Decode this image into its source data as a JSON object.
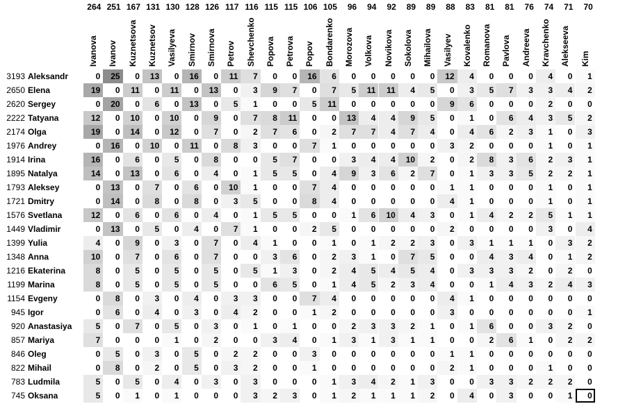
{
  "chart_data": {
    "type": "heatmap",
    "title": "",
    "columns": [
      {
        "name": "Ivanova",
        "count": 264
      },
      {
        "name": "Ivanov",
        "count": 251
      },
      {
        "name": "Kuznetsova",
        "count": 167
      },
      {
        "name": "Kuznetsov",
        "count": 131
      },
      {
        "name": "Vasilyeva",
        "count": 130
      },
      {
        "name": "Smirnov",
        "count": 128
      },
      {
        "name": "Smirnova",
        "count": 126
      },
      {
        "name": "Petrov",
        "count": 117
      },
      {
        "name": "Shevchenko",
        "count": 116
      },
      {
        "name": "Popova",
        "count": 115
      },
      {
        "name": "Petrova",
        "count": 115
      },
      {
        "name": "Popov",
        "count": 106
      },
      {
        "name": "Bondarenko",
        "count": 105
      },
      {
        "name": "Morozova",
        "count": 96
      },
      {
        "name": "Volkova",
        "count": 94
      },
      {
        "name": "Novikova",
        "count": 92
      },
      {
        "name": "Sokolova",
        "count": 89
      },
      {
        "name": "Mihailova",
        "count": 89
      },
      {
        "name": "Vasilyev",
        "count": 88
      },
      {
        "name": "Kovalenko",
        "count": 83
      },
      {
        "name": "Romanova",
        "count": 81
      },
      {
        "name": "Pavlova",
        "count": 81
      },
      {
        "name": "Andreeva",
        "count": 76
      },
      {
        "name": "Kravchenko",
        "count": 74
      },
      {
        "name": "Alekseeva",
        "count": 71
      },
      {
        "name": "Kim",
        "count": 70
      }
    ],
    "rows": [
      {
        "name": "Aleksandr",
        "count": 3193,
        "values": [
          0,
          25,
          0,
          13,
          0,
          16,
          0,
          11,
          7,
          0,
          0,
          16,
          6,
          0,
          0,
          0,
          0,
          0,
          12,
          4,
          0,
          0,
          0,
          4,
          0,
          1
        ]
      },
      {
        "name": "Elena",
        "count": 2650,
        "values": [
          19,
          0,
          11,
          0,
          11,
          0,
          13,
          0,
          3,
          9,
          7,
          0,
          7,
          5,
          11,
          11,
          4,
          5,
          0,
          3,
          5,
          7,
          3,
          3,
          4,
          2
        ]
      },
      {
        "name": "Sergey",
        "count": 2620,
        "values": [
          0,
          20,
          0,
          6,
          0,
          13,
          0,
          5,
          1,
          0,
          0,
          5,
          11,
          0,
          0,
          0,
          0,
          0,
          9,
          6,
          0,
          0,
          0,
          2,
          0,
          0
        ]
      },
      {
        "name": "Tatyana",
        "count": 2222,
        "values": [
          12,
          0,
          10,
          0,
          10,
          0,
          9,
          0,
          7,
          8,
          11,
          0,
          0,
          13,
          4,
          4,
          9,
          5,
          0,
          1,
          0,
          6,
          4,
          3,
          5,
          2
        ]
      },
      {
        "name": "Olga",
        "count": 2174,
        "values": [
          19,
          0,
          14,
          0,
          12,
          0,
          7,
          0,
          2,
          7,
          6,
          0,
          2,
          7,
          7,
          4,
          7,
          4,
          0,
          4,
          6,
          2,
          3,
          1,
          0,
          3
        ]
      },
      {
        "name": "Andrey",
        "count": 1976,
        "values": [
          0,
          16,
          0,
          10,
          0,
          11,
          0,
          8,
          3,
          0,
          0,
          7,
          1,
          0,
          0,
          0,
          0,
          0,
          3,
          2,
          0,
          0,
          0,
          1,
          0,
          1
        ]
      },
      {
        "name": "Irina",
        "count": 1914,
        "values": [
          16,
          0,
          6,
          0,
          5,
          0,
          8,
          0,
          0,
          5,
          7,
          0,
          0,
          3,
          4,
          4,
          10,
          2,
          0,
          2,
          8,
          3,
          6,
          2,
          3,
          1
        ]
      },
      {
        "name": "Natalya",
        "count": 1895,
        "values": [
          14,
          0,
          13,
          0,
          6,
          0,
          4,
          0,
          1,
          5,
          5,
          0,
          4,
          9,
          3,
          6,
          2,
          7,
          0,
          1,
          3,
          3,
          5,
          2,
          2,
          1
        ]
      },
      {
        "name": "Aleksey",
        "count": 1793,
        "values": [
          0,
          13,
          0,
          7,
          0,
          6,
          0,
          10,
          1,
          0,
          0,
          7,
          4,
          0,
          0,
          0,
          0,
          0,
          1,
          1,
          0,
          0,
          0,
          1,
          0,
          1
        ]
      },
      {
        "name": "Dmitry",
        "count": 1721,
        "values": [
          0,
          14,
          0,
          8,
          0,
          8,
          0,
          3,
          5,
          0,
          0,
          8,
          4,
          0,
          0,
          0,
          0,
          0,
          4,
          1,
          0,
          0,
          0,
          1,
          0,
          1
        ]
      },
      {
        "name": "Svetlana",
        "count": 1576,
        "values": [
          12,
          0,
          6,
          0,
          6,
          0,
          4,
          0,
          1,
          5,
          5,
          0,
          0,
          1,
          6,
          10,
          4,
          3,
          0,
          1,
          4,
          2,
          2,
          5,
          1,
          1
        ]
      },
      {
        "name": "Vladimir",
        "count": 1449,
        "values": [
          0,
          13,
          0,
          5,
          0,
          4,
          0,
          7,
          1,
          0,
          0,
          2,
          5,
          0,
          0,
          0,
          0,
          0,
          2,
          0,
          0,
          0,
          0,
          3,
          0,
          4
        ]
      },
      {
        "name": "Yulia",
        "count": 1399,
        "values": [
          4,
          0,
          9,
          0,
          3,
          0,
          7,
          0,
          4,
          1,
          0,
          0,
          1,
          0,
          1,
          2,
          2,
          3,
          0,
          3,
          1,
          1,
          1,
          0,
          3,
          2
        ]
      },
      {
        "name": "Anna",
        "count": 1348,
        "values": [
          10,
          0,
          7,
          0,
          6,
          0,
          7,
          0,
          0,
          3,
          6,
          0,
          2,
          3,
          1,
          0,
          7,
          5,
          0,
          0,
          4,
          3,
          4,
          0,
          1,
          2
        ]
      },
      {
        "name": "Ekaterina",
        "count": 1216,
        "values": [
          8,
          0,
          5,
          0,
          5,
          0,
          5,
          0,
          5,
          1,
          3,
          0,
          2,
          4,
          5,
          4,
          5,
          4,
          0,
          3,
          3,
          3,
          2,
          0,
          2,
          0
        ]
      },
      {
        "name": "Marina",
        "count": 1199,
        "values": [
          8,
          0,
          5,
          0,
          5,
          0,
          5,
          0,
          0,
          6,
          5,
          0,
          1,
          4,
          5,
          2,
          3,
          4,
          0,
          0,
          1,
          4,
          3,
          2,
          4,
          3
        ]
      },
      {
        "name": "Evgeny",
        "count": 1154,
        "values": [
          0,
          8,
          0,
          3,
          0,
          4,
          0,
          3,
          3,
          0,
          0,
          7,
          4,
          0,
          0,
          0,
          0,
          0,
          4,
          1,
          0,
          0,
          0,
          0,
          0,
          0
        ]
      },
      {
        "name": "Igor",
        "count": 945,
        "values": [
          0,
          6,
          0,
          4,
          0,
          3,
          0,
          4,
          2,
          0,
          0,
          1,
          2,
          0,
          0,
          0,
          0,
          0,
          3,
          0,
          0,
          0,
          0,
          0,
          0,
          1
        ]
      },
      {
        "name": "Anastasiya",
        "count": 920,
        "values": [
          5,
          0,
          7,
          0,
          5,
          0,
          3,
          0,
          1,
          0,
          1,
          0,
          0,
          2,
          3,
          3,
          2,
          1,
          0,
          1,
          6,
          0,
          0,
          3,
          2,
          0
        ]
      },
      {
        "name": "Mariya",
        "count": 857,
        "values": [
          7,
          0,
          0,
          0,
          1,
          0,
          2,
          0,
          0,
          3,
          4,
          0,
          1,
          3,
          1,
          3,
          1,
          1,
          0,
          0,
          2,
          6,
          1,
          0,
          2,
          2
        ]
      },
      {
        "name": "Oleg",
        "count": 846,
        "values": [
          0,
          5,
          0,
          3,
          0,
          5,
          0,
          2,
          2,
          0,
          0,
          3,
          0,
          0,
          0,
          0,
          0,
          0,
          1,
          1,
          0,
          0,
          0,
          0,
          0,
          0
        ]
      },
      {
        "name": "Mihail",
        "count": 822,
        "values": [
          0,
          8,
          0,
          2,
          0,
          5,
          0,
          3,
          2,
          0,
          0,
          1,
          0,
          0,
          0,
          0,
          0,
          0,
          2,
          1,
          0,
          0,
          0,
          1,
          0,
          0
        ]
      },
      {
        "name": "Ludmila",
        "count": 783,
        "values": [
          5,
          0,
          5,
          0,
          4,
          0,
          3,
          0,
          3,
          0,
          0,
          0,
          1,
          3,
          4,
          2,
          1,
          3,
          0,
          0,
          3,
          3,
          2,
          2,
          2,
          0
        ]
      },
      {
        "name": "Oksana",
        "count": 745,
        "values": [
          5,
          0,
          1,
          0,
          1,
          0,
          0,
          0,
          3,
          2,
          3,
          0,
          1,
          2,
          1,
          1,
          1,
          2,
          0,
          4,
          0,
          3,
          0,
          0,
          1,
          0
        ]
      }
    ],
    "color_scale": {
      "min": 0,
      "max": 25,
      "low_color": "#ffffff",
      "high_color": "#8c8c8c"
    },
    "selected_cell": {
      "row": "Oksana",
      "column": "Kim"
    }
  }
}
